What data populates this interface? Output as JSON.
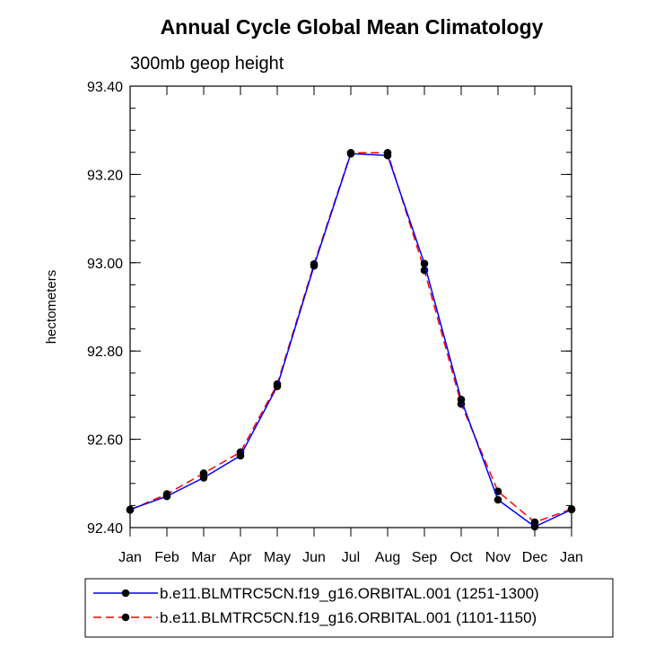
{
  "chart_data": {
    "type": "line",
    "title": "Annual Cycle Global Mean Climatology",
    "subtitle": "300mb geop height",
    "xlabel": "",
    "ylabel": "hectometers",
    "categories": [
      "Jan",
      "Feb",
      "Mar",
      "Apr",
      "May",
      "Jun",
      "Jul",
      "Aug",
      "Sep",
      "Oct",
      "Nov",
      "Dec",
      "Jan"
    ],
    "ylim": [
      92.4,
      93.4
    ],
    "y_ticks": [
      "92.40",
      "92.60",
      "92.80",
      "93.00",
      "93.20",
      "93.40"
    ],
    "grid": false,
    "legend_position": "bottom",
    "series": [
      {
        "name": "b.e11.BLMTRC5CN.f19_g16.ORBITAL.001 (1251-1300)",
        "color": "#0000ff",
        "line_style": "solid",
        "marker": "filled-circle",
        "values": [
          92.441,
          92.471,
          92.513,
          92.563,
          92.72,
          92.993,
          93.247,
          93.243,
          92.998,
          92.69,
          92.463,
          92.402,
          92.441
        ]
      },
      {
        "name": "b.e11.BLMTRC5CN.f19_g16.ORBITAL.001 (1101-1150)",
        "color": "#ff0000",
        "line_style": "dashed",
        "marker": "filled-circle",
        "values": [
          92.44,
          92.476,
          92.523,
          92.571,
          92.725,
          92.997,
          93.249,
          93.249,
          92.983,
          92.68,
          92.482,
          92.412,
          92.442
        ]
      }
    ]
  }
}
